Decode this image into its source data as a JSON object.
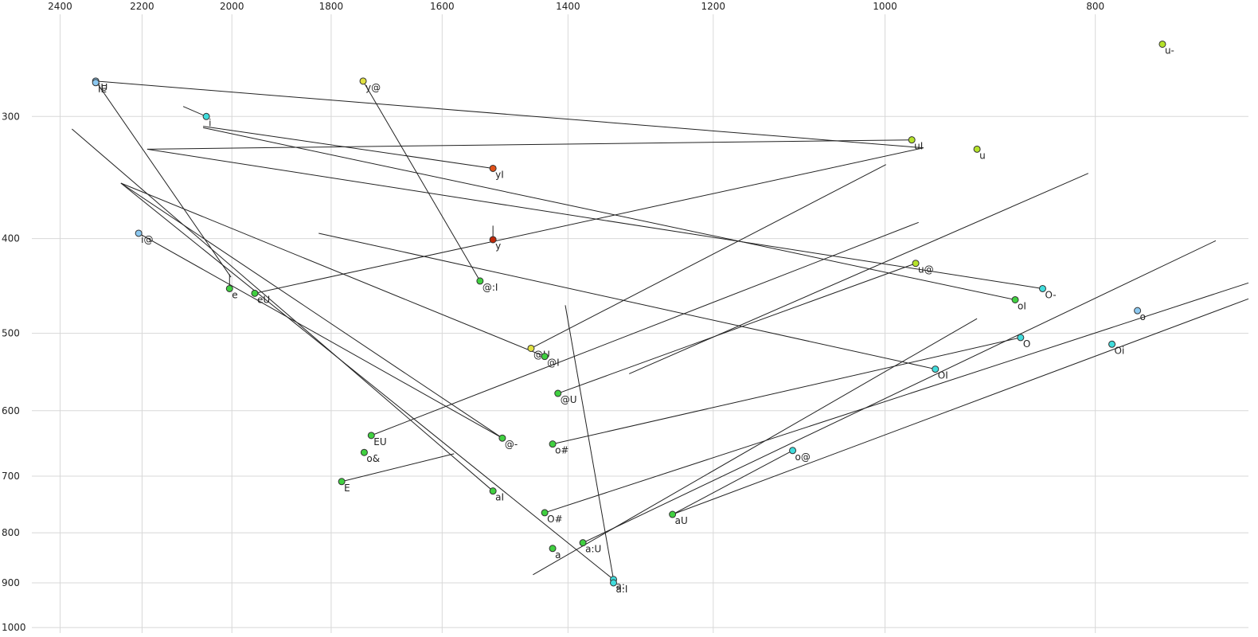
{
  "chart_data": {
    "type": "scatter",
    "xscale": "log",
    "yscale": "log",
    "xlim": [
      2558,
      680
    ],
    "ylim": [
      228,
      1013
    ],
    "xticks": [
      2400,
      2200,
      2000,
      1800,
      1600,
      1400,
      1200,
      1000,
      800
    ],
    "yticks": [
      300,
      400,
      500,
      600,
      700,
      800,
      900,
      1000
    ],
    "grid": true,
    "labels": [
      "u-",
      "iU",
      "iE",
      "i",
      "y@",
      "uI",
      "u",
      "yI",
      "y",
      "i@",
      "e",
      "eU",
      "@:I",
      "u@",
      "O-",
      "oI",
      "o",
      "O",
      "Oi",
      "@U",
      "@I",
      "OI",
      "@U",
      "EU",
      "@-",
      "o#",
      "o&",
      "o@",
      "E",
      "aI",
      "O#",
      "aU",
      "a:U",
      "a",
      "a:",
      "a:I"
    ],
    "x": [
      745,
      2311,
      2311,
      2055,
      1740,
      972,
      907,
      1516,
      1516,
      2208,
      2005,
      1952,
      1537,
      968,
      846,
      871,
      765,
      866,
      786,
      1456,
      1435,
      948,
      1415,
      1725,
      1501,
      1423,
      1738,
      1103,
      1780,
      1516,
      1435,
      1253,
      1378,
      1423,
      1334,
      1334
    ],
    "y": [
      253,
      276,
      277,
      300,
      276,
      317,
      324,
      339,
      401,
      395,
      450,
      455,
      442,
      424,
      450,
      462,
      474,
      505,
      513,
      518,
      528,
      544,
      576,
      636,
      640,
      649,
      662,
      659,
      709,
      725,
      763,
      766,
      819,
      830,
      893,
      900
    ],
    "colors": [
      "#b5e32a",
      "#8cc8f0",
      "#8cc8f0",
      "#40dcdc",
      "#e0e040",
      "#b5e32a",
      "#b5e32a",
      "#e05018",
      "#c02808",
      "#8cc8f0",
      "#40d040",
      "#40d040",
      "#40d040",
      "#b5e32a",
      "#40dcdc",
      "#40d040",
      "#8cc8f0",
      "#40dcdc",
      "#40dcdc",
      "#e0e040",
      "#40d040",
      "#40dcdc",
      "#40d040",
      "#40d040",
      "#40d040",
      "#40d040",
      "#40d040",
      "#40dcdc",
      "#40d040",
      "#40d040",
      "#40d040",
      "#40d040",
      "#40d040",
      "#40d040",
      "#40dcdc",
      "#40dcdc"
    ],
    "segments": [
      {
        "x": [
          2311,
          960
        ],
        "y": [
          276,
          323
        ]
      },
      {
        "x": [
          2311,
          2002
        ],
        "y": [
          276,
          438
        ]
      },
      {
        "x": [
          1740,
          1537
        ],
        "y": [
          276,
          442
        ]
      },
      {
        "x": [
          2188,
          972
        ],
        "y": [
          324,
          317
        ]
      },
      {
        "x": [
          2188,
          846
        ],
        "y": [
          324,
          450
        ]
      },
      {
        "x": [
          2062,
          1516
        ],
        "y": [
          307,
          339
        ]
      },
      {
        "x": [
          2062,
          871
        ],
        "y": [
          308,
          462
        ]
      },
      {
        "x": [
          2106,
          2055
        ],
        "y": [
          293,
          300
        ]
      },
      {
        "x": [
          2370,
          1516
        ],
        "y": [
          309,
          725
        ]
      },
      {
        "x": [
          2250,
          1501
        ],
        "y": [
          351,
          640
        ]
      },
      {
        "x": [
          2250,
          1435
        ],
        "y": [
          351,
          528
        ]
      },
      {
        "x": [
          2250,
          1334
        ],
        "y": [
          351,
          893
        ]
      },
      {
        "x": [
          2208,
          1501
        ],
        "y": [
          395,
          640
        ]
      },
      {
        "x": [
          1952,
          960
        ],
        "y": [
          455,
          323
        ]
      },
      {
        "x": [
          1824,
          948
        ],
        "y": [
          395,
          544
        ]
      },
      {
        "x": [
          1516,
          1516
        ],
        "y": [
          388,
          401
        ]
      },
      {
        "x": [
          2005,
          2005
        ],
        "y": [
          435,
          450
        ]
      },
      {
        "x": [
          1456,
          999
        ],
        "y": [
          518,
          336
        ]
      },
      {
        "x": [
          1725,
          965
        ],
        "y": [
          636,
          385
        ]
      },
      {
        "x": [
          1415,
          968
        ],
        "y": [
          576,
          424
        ]
      },
      {
        "x": [
          1312,
          806
        ],
        "y": [
          550,
          343
        ]
      },
      {
        "x": [
          1423,
          866
        ],
        "y": [
          649,
          505
        ]
      },
      {
        "x": [
          1435,
          680
        ],
        "y": [
          763,
          444
        ]
      },
      {
        "x": [
          1253,
          680
        ],
        "y": [
          766,
          461
        ]
      },
      {
        "x": [
          1378,
          704
        ],
        "y": [
          819,
          402
        ]
      },
      {
        "x": [
          1453,
          907
        ],
        "y": [
          883,
          483
        ]
      },
      {
        "x": [
          1780,
          1580
        ],
        "y": [
          709,
          664
        ]
      },
      {
        "x": [
          1404,
          1334
        ],
        "y": [
          468,
          893
        ]
      },
      {
        "x": [
          1103,
          1253
        ],
        "y": [
          659,
          766
        ]
      }
    ]
  }
}
